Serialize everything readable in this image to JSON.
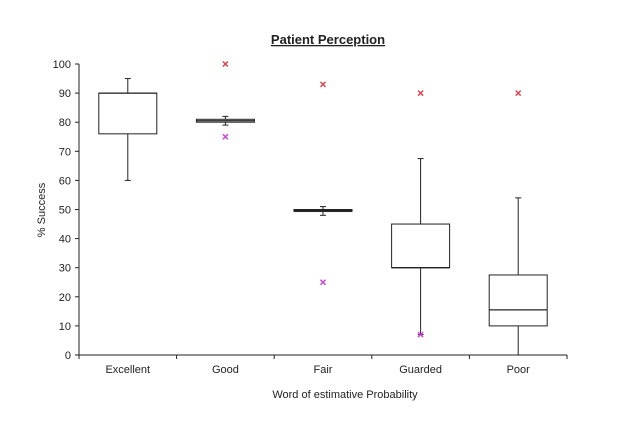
{
  "chart_data": {
    "type": "boxplot",
    "title": "Patient Perception",
    "xlabel": "Word of estimative Probability",
    "ylabel": "% Success",
    "ylim": [
      0,
      100
    ],
    "yticks": [
      0,
      10,
      20,
      30,
      40,
      50,
      60,
      70,
      80,
      90,
      100
    ],
    "grid": false,
    "categories": [
      "Excellent",
      "Good",
      "Fair",
      "Guarded",
      "Poor"
    ],
    "boxes": [
      {
        "min": 60,
        "q1": 76,
        "median": 90,
        "q3": 90,
        "max": 95,
        "outliers_high": [],
        "outliers_low": []
      },
      {
        "min": 79,
        "q1": 80,
        "median": 80.5,
        "q3": 81,
        "max": 82,
        "outliers_high": [
          100
        ],
        "outliers_low": [
          75
        ]
      },
      {
        "min": 48,
        "q1": 49.3,
        "median": 49.7,
        "q3": 50,
        "max": 51,
        "outliers_high": [
          93
        ],
        "outliers_low": [
          25
        ]
      },
      {
        "min": 7,
        "q1": 30,
        "median": 30,
        "q3": 45,
        "max": 67.5,
        "outliers_high": [
          90
        ],
        "outliers_low": [
          7
        ]
      },
      {
        "min": 0,
        "q1": 10,
        "median": 15.5,
        "q3": 27.5,
        "max": 54,
        "outliers_high": [
          90
        ],
        "outliers_low": []
      }
    ],
    "colors": {
      "high_outlier": "#e0404a",
      "low_outlier": "#d040e0",
      "box": "#222222"
    }
  }
}
